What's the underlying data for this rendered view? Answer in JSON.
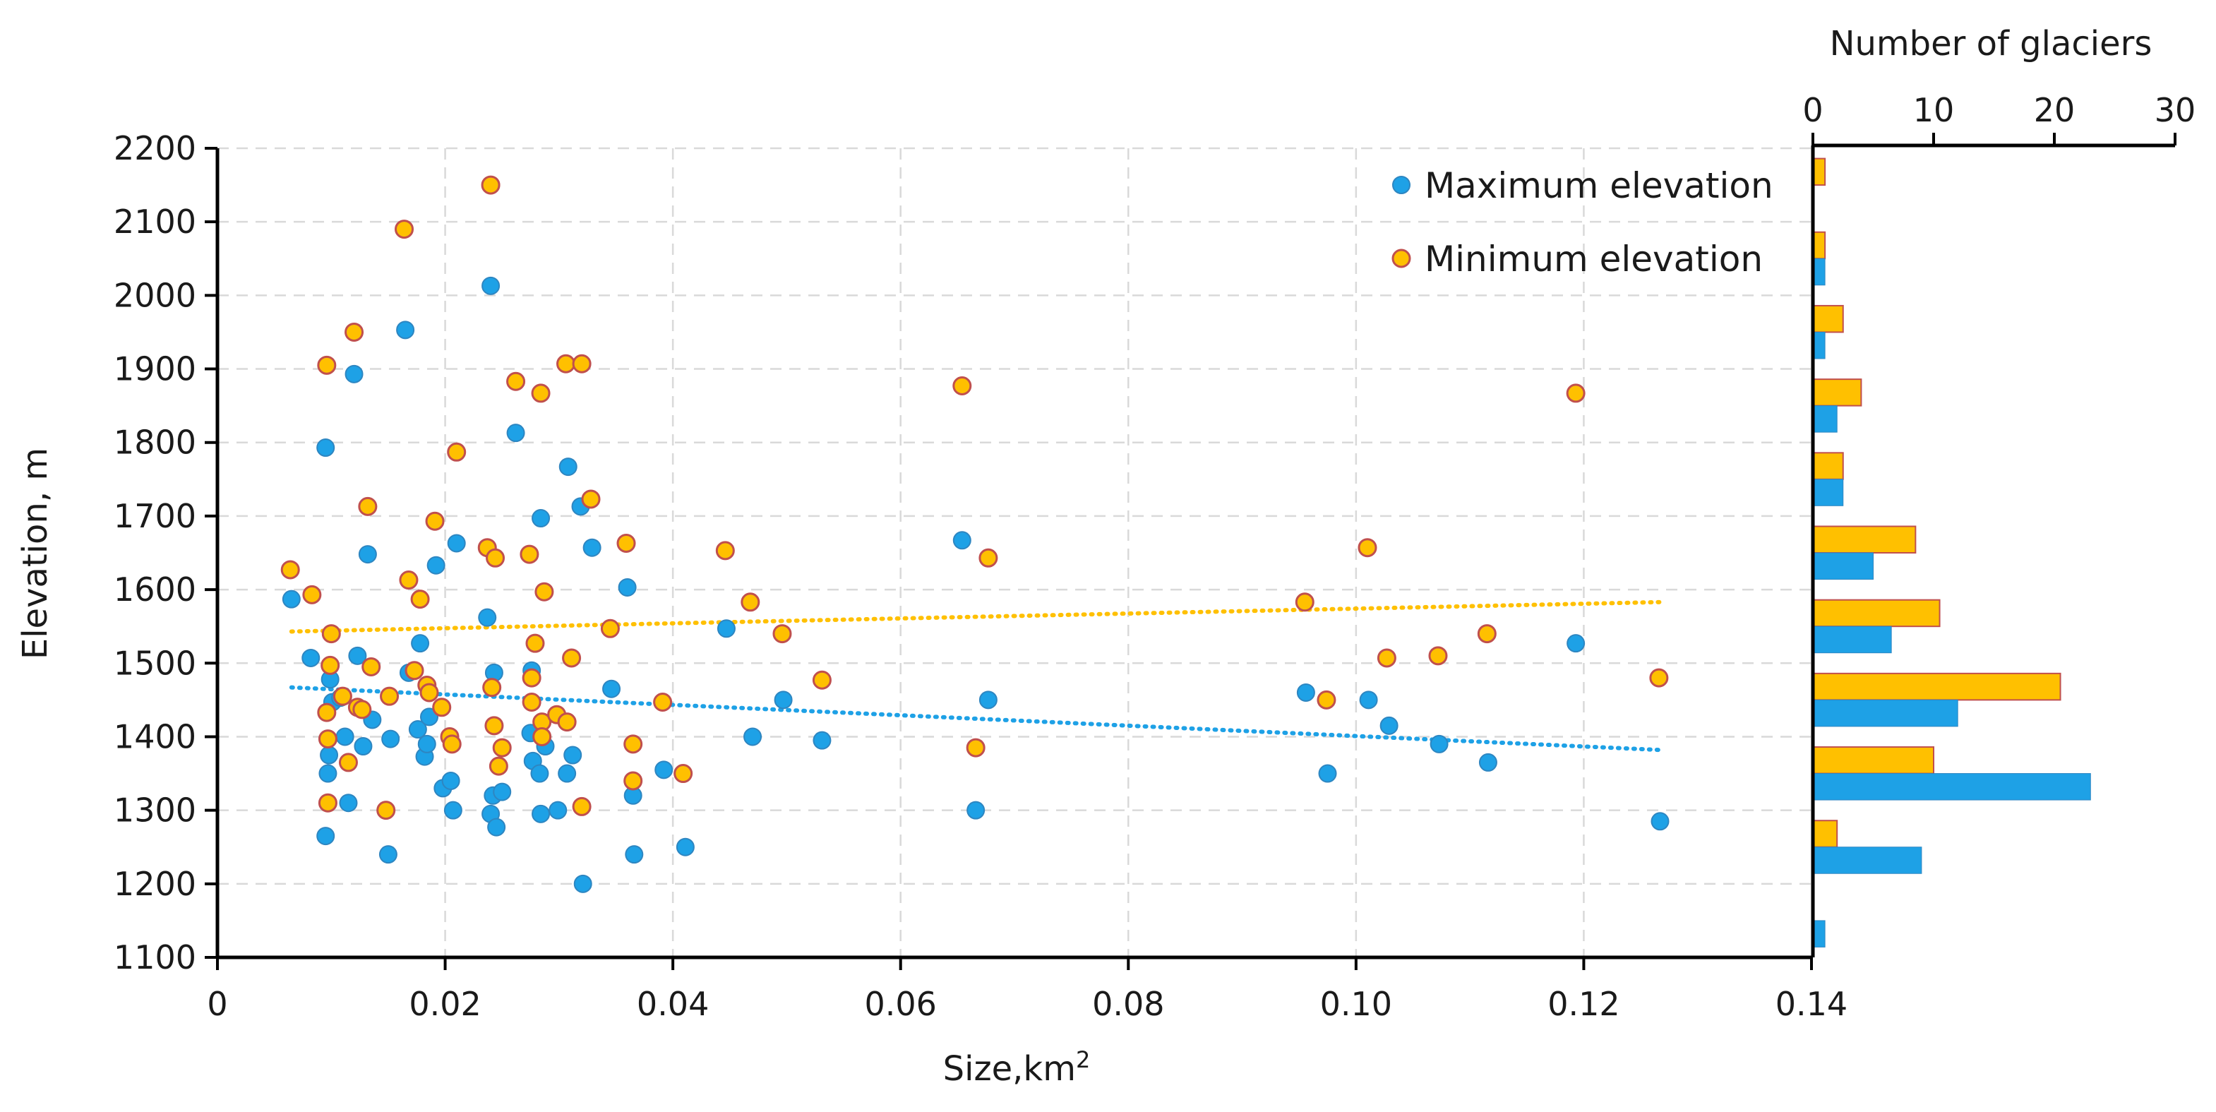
{
  "colors": {
    "max": "#1ea1e6",
    "min": "#ffc000",
    "min_edge": "#c0504d",
    "max_trend": "#1ea1e6",
    "min_trend": "#ffc000"
  },
  "chart_data": [
    {
      "type": "scatter",
      "xlabel": "Size,km",
      "xlabel_sup": "2",
      "ylabel": "Elevation, m",
      "xlim": [
        0,
        0.14
      ],
      "ylim": [
        1100,
        2200
      ],
      "x_ticks": [
        0,
        0.02,
        0.04,
        0.06,
        0.08,
        0.1,
        0.12,
        0.14
      ],
      "x_tick_labels": [
        "0",
        "0.02",
        "0.04",
        "0.06",
        "0.08",
        "0.10",
        "0.12",
        "0.14"
      ],
      "y_ticks": [
        1100,
        1200,
        1300,
        1400,
        1500,
        1600,
        1700,
        1800,
        1900,
        2000,
        2100,
        2200
      ],
      "y_tick_labels": [
        "1100",
        "1200",
        "1300",
        "1400",
        "1500",
        "1600",
        "1700",
        "1800",
        "1900",
        "2000",
        "2100",
        "2200"
      ],
      "grid": true,
      "legend_position": "top-right",
      "series": [
        {
          "name": "Maximum elevation",
          "color_key": "max",
          "points": [
            [
              0.0065,
              1587
            ],
            [
              0.0082,
              1507
            ],
            [
              0.0095,
              1793
            ],
            [
              0.0095,
              1265
            ],
            [
              0.0097,
              1350
            ],
            [
              0.0098,
              1375
            ],
            [
              0.0099,
              1478
            ],
            [
              0.0101,
              1447
            ],
            [
              0.0108,
              1453
            ],
            [
              0.0112,
              1400
            ],
            [
              0.0115,
              1310
            ],
            [
              0.012,
              1893
            ],
            [
              0.0123,
              1510
            ],
            [
              0.0128,
              1387
            ],
            [
              0.0132,
              1648
            ],
            [
              0.0136,
              1423
            ],
            [
              0.015,
              1240
            ],
            [
              0.0152,
              1397
            ],
            [
              0.0165,
              1953
            ],
            [
              0.0168,
              1487
            ],
            [
              0.0176,
              1410
            ],
            [
              0.0178,
              1527
            ],
            [
              0.0182,
              1373
            ],
            [
              0.0184,
              1390
            ],
            [
              0.0186,
              1427
            ],
            [
              0.0192,
              1633
            ],
            [
              0.0198,
              1330
            ],
            [
              0.0205,
              1340
            ],
            [
              0.0207,
              1300
            ],
            [
              0.021,
              1663
            ],
            [
              0.0237,
              1562
            ],
            [
              0.024,
              2013
            ],
            [
              0.024,
              1295
            ],
            [
              0.0242,
              1320
            ],
            [
              0.0243,
              1487
            ],
            [
              0.0245,
              1277
            ],
            [
              0.025,
              1325
            ],
            [
              0.0262,
              1813
            ],
            [
              0.0275,
              1405
            ],
            [
              0.0276,
              1490
            ],
            [
              0.0277,
              1367
            ],
            [
              0.0283,
              1350
            ],
            [
              0.0284,
              1697
            ],
            [
              0.0284,
              1295
            ],
            [
              0.0288,
              1387
            ],
            [
              0.0299,
              1300
            ],
            [
              0.0307,
              1350
            ],
            [
              0.0308,
              1767
            ],
            [
              0.0312,
              1375
            ],
            [
              0.0319,
              1713
            ],
            [
              0.0321,
              1200
            ],
            [
              0.0329,
              1657
            ],
            [
              0.0346,
              1465
            ],
            [
              0.036,
              1603
            ],
            [
              0.0365,
              1320
            ],
            [
              0.0366,
              1240
            ],
            [
              0.0392,
              1355
            ],
            [
              0.0411,
              1250
            ],
            [
              0.0447,
              1547
            ],
            [
              0.047,
              1400
            ],
            [
              0.0497,
              1450
            ],
            [
              0.0531,
              1395
            ],
            [
              0.0654,
              1667
            ],
            [
              0.0666,
              1300
            ],
            [
              0.0677,
              1450
            ],
            [
              0.0956,
              1460
            ],
            [
              0.0975,
              1350
            ],
            [
              0.1011,
              1450
            ],
            [
              0.1029,
              1415
            ],
            [
              0.1073,
              1390
            ],
            [
              0.1116,
              1365
            ],
            [
              0.1193,
              1527
            ],
            [
              0.1267,
              1285
            ]
          ]
        },
        {
          "name": "Minimum elevation",
          "color_key": "min",
          "points": [
            [
              0.0064,
              1627
            ],
            [
              0.0083,
              1593
            ],
            [
              0.0096,
              1905
            ],
            [
              0.0096,
              1433
            ],
            [
              0.0097,
              1397
            ],
            [
              0.0097,
              1310
            ],
            [
              0.0099,
              1497
            ],
            [
              0.01,
              1540
            ],
            [
              0.011,
              1455
            ],
            [
              0.0115,
              1365
            ],
            [
              0.012,
              1950
            ],
            [
              0.0123,
              1440
            ],
            [
              0.0127,
              1437
            ],
            [
              0.0132,
              1713
            ],
            [
              0.0135,
              1495
            ],
            [
              0.0148,
              1300
            ],
            [
              0.0151,
              1455
            ],
            [
              0.0164,
              2090
            ],
            [
              0.0168,
              1613
            ],
            [
              0.0173,
              1490
            ],
            [
              0.0178,
              1587
            ],
            [
              0.0184,
              1470
            ],
            [
              0.0186,
              1460
            ],
            [
              0.0191,
              1693
            ],
            [
              0.0197,
              1440
            ],
            [
              0.0204,
              1400
            ],
            [
              0.0206,
              1390
            ],
            [
              0.021,
              1787
            ],
            [
              0.0237,
              1657
            ],
            [
              0.024,
              2150
            ],
            [
              0.0241,
              1467
            ],
            [
              0.0243,
              1415
            ],
            [
              0.0244,
              1643
            ],
            [
              0.0247,
              1360
            ],
            [
              0.025,
              1385
            ],
            [
              0.0262,
              1883
            ],
            [
              0.0274,
              1648
            ],
            [
              0.0276,
              1480
            ],
            [
              0.0276,
              1447
            ],
            [
              0.0279,
              1527
            ],
            [
              0.0284,
              1867
            ],
            [
              0.0285,
              1420
            ],
            [
              0.0285,
              1400
            ],
            [
              0.0287,
              1597
            ],
            [
              0.0298,
              1430
            ],
            [
              0.0306,
              1907
            ],
            [
              0.0307,
              1420
            ],
            [
              0.0311,
              1507
            ],
            [
              0.032,
              1907
            ],
            [
              0.032,
              1305
            ],
            [
              0.0328,
              1723
            ],
            [
              0.0345,
              1547
            ],
            [
              0.0359,
              1663
            ],
            [
              0.0365,
              1340
            ],
            [
              0.0365,
              1390
            ],
            [
              0.0391,
              1447
            ],
            [
              0.0409,
              1350
            ],
            [
              0.0446,
              1653
            ],
            [
              0.0468,
              1583
            ],
            [
              0.0496,
              1540
            ],
            [
              0.0531,
              1477
            ],
            [
              0.0654,
              1877
            ],
            [
              0.0666,
              1385
            ],
            [
              0.0677,
              1643
            ],
            [
              0.0955,
              1583
            ],
            [
              0.0974,
              1450
            ],
            [
              0.101,
              1657
            ],
            [
              0.1027,
              1507
            ],
            [
              0.1072,
              1510
            ],
            [
              0.1115,
              1540
            ],
            [
              0.1193,
              1867
            ],
            [
              0.1266,
              1480
            ]
          ]
        }
      ],
      "trendlines": [
        {
          "name": "Maximum elevation trend",
          "color_key": "max_trend",
          "x": [
            0.0065,
            0.1267
          ],
          "y": [
            1467,
            1382
          ]
        },
        {
          "name": "Minimum elevation trend",
          "color_key": "min_trend",
          "x": [
            0.0065,
            0.1267
          ],
          "y": [
            1543,
            1583
          ]
        }
      ]
    },
    {
      "type": "bar",
      "orientation": "horizontal",
      "title": "Number of glaciers",
      "xlim": [
        0,
        30
      ],
      "x_ticks": [
        0,
        10,
        20,
        30
      ],
      "x_tick_labels": [
        "0",
        "10",
        "20",
        "30"
      ],
      "categories": [
        1150,
        1250,
        1350,
        1450,
        1550,
        1650,
        1750,
        1850,
        1950,
        2050,
        2150
      ],
      "series": [
        {
          "name": "Maximum elevation",
          "color_key": "max",
          "values": [
            1,
            9,
            23,
            12,
            6.5,
            5,
            2.5,
            2,
            1,
            1,
            0
          ]
        },
        {
          "name": "Minimum elevation",
          "color_key": "min",
          "values": [
            0,
            2,
            10,
            20.5,
            10.5,
            8.5,
            2.5,
            4,
            2.5,
            1,
            1
          ]
        }
      ]
    }
  ]
}
